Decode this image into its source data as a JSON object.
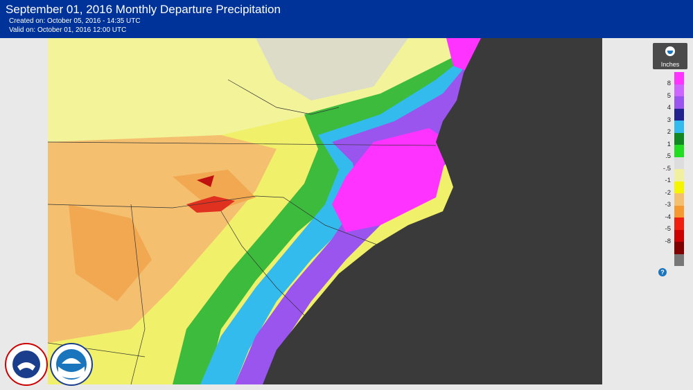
{
  "header": {
    "title": "September 01, 2016 Monthly Departure Precipitation",
    "created": "Created on: October 05, 2016 - 14:35 UTC",
    "valid": "Valid on: October 01, 2016 12:00 UTC"
  },
  "legend": {
    "units": "Inches",
    "labels": [
      "8",
      "5",
      "4",
      "3",
      "2",
      "1",
      ".5",
      "-.5",
      "-1",
      "-2",
      "-3",
      "-4",
      "-5",
      "-8"
    ],
    "colors": [
      "#ff33ff",
      "#cc66ff",
      "#9955ee",
      "#22228f",
      "#33bbee",
      "#118822",
      "#22dd22",
      "#dddddd",
      "#f0f0a0",
      "#f5f500",
      "#f4c070",
      "#f49a30",
      "#f02010",
      "#cc0000",
      "#800000",
      "#777777"
    ],
    "help_icon": "?"
  },
  "map": {
    "ocean_color": "#3a3a3a",
    "land_base_color": "#f0f06a"
  },
  "logos": {
    "nws": "NATIONAL WEATHER SERVICE",
    "noaa": "NOAA"
  }
}
